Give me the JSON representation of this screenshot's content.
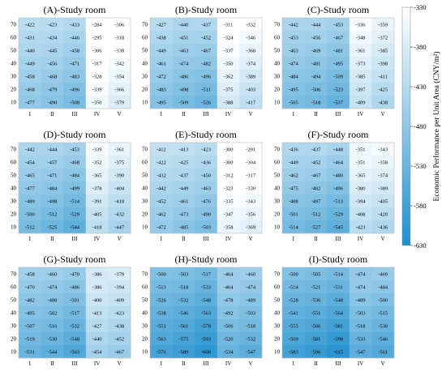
{
  "chart_data": {
    "type": "heatmap",
    "colorbar": {
      "label": "Economic Performance per Unit Area (CNY/m²)",
      "range": [
        -630,
        -330
      ],
      "ticks": [
        "-330",
        "-380",
        "-430",
        "-480",
        "-530",
        "-580",
        "-630"
      ],
      "color_high": "#ffffff",
      "color_low": "#1f8fce"
    },
    "x_categories": [
      "I",
      "II",
      "III",
      "IV",
      "V"
    ],
    "y_categories": [
      "70",
      "60",
      "50",
      "40",
      "30",
      "20",
      "10"
    ],
    "panels": [
      {
        "title": "(A)-Study room",
        "values": [
          [
            -422,
            -423,
            -433,
            -284,
            -306
          ],
          [
            -431,
            -434,
            -446,
            -295,
            -318
          ],
          [
            -440,
            -445,
            -458,
            -306,
            -330
          ],
          [
            -449,
            -456,
            -471,
            -317,
            -342
          ],
          [
            -458,
            -468,
            -483,
            -328,
            -354
          ],
          [
            -468,
            -479,
            -496,
            -339,
            -366
          ],
          [
            -477,
            -490,
            -508,
            -350,
            -379
          ]
        ]
      },
      {
        "title": "(B)-Study room",
        "values": [
          [
            -427,
            -440,
            -437,
            -311,
            -332
          ],
          [
            -438,
            -451,
            -452,
            -324,
            -346
          ],
          [
            -449,
            -463,
            -467,
            -337,
            -360
          ],
          [
            -461,
            -474,
            -482,
            -350,
            -374
          ],
          [
            -472,
            -486,
            -496,
            -362,
            -389
          ],
          [
            -483,
            -498,
            -511,
            -375,
            -403
          ],
          [
            -495,
            -509,
            -526,
            -388,
            -417
          ]
        ]
      },
      {
        "title": "(C)-Study room",
        "values": [
          [
            -442,
            -444,
            -453,
            -336,
            -359
          ],
          [
            -453,
            -456,
            -467,
            -348,
            -372
          ],
          [
            -463,
            -469,
            -481,
            -361,
            -385
          ],
          [
            -474,
            -481,
            -495,
            -373,
            -398
          ],
          [
            -484,
            -494,
            -509,
            -385,
            -411
          ],
          [
            -495,
            -506,
            -523,
            -397,
            -425
          ],
          [
            -505,
            -518,
            -537,
            -409,
            -438
          ]
        ]
      },
      {
        "title": "(D)-Study room",
        "values": [
          [
            -442,
            -444,
            -453,
            -339,
            -361
          ],
          [
            -454,
            -457,
            -468,
            -352,
            -375
          ],
          [
            -465,
            -471,
            -484,
            -365,
            -390
          ],
          [
            -477,
            -484,
            -499,
            -378,
            -404
          ],
          [
            -489,
            -498,
            -514,
            -391,
            -418
          ],
          [
            -500,
            -512,
            -529,
            -405,
            -432
          ],
          [
            -512,
            -525,
            -544,
            -418,
            -447
          ]
        ]
      },
      {
        "title": "(E)-Study room",
        "values": [
          [
            -412,
            -413,
            -423,
            -300,
            -291
          ],
          [
            -422,
            -425,
            -436,
            -300,
            -304
          ],
          [
            -432,
            -437,
            -450,
            -312,
            -317
          ],
          [
            -442,
            -449,
            -463,
            -323,
            -330
          ],
          [
            -452,
            -461,
            -476,
            -335,
            -343
          ],
          [
            -462,
            -473,
            -490,
            -347,
            -356
          ],
          [
            -472,
            -485,
            -503,
            -358,
            -369
          ]
        ]
      },
      {
        "title": "(F)-Study room",
        "values": [
          [
            -436,
            -437,
            -448,
            -351,
            -343
          ],
          [
            -449,
            -452,
            -464,
            -351,
            -358
          ],
          [
            -462,
            -467,
            -480,
            -365,
            -374
          ],
          [
            -475,
            -482,
            -496,
            -380,
            -389
          ],
          [
            -488,
            -497,
            -513,
            -394,
            -405
          ],
          [
            -501,
            -512,
            -529,
            -408,
            -420
          ],
          [
            -514,
            -527,
            -545,
            -423,
            -436
          ]
        ]
      },
      {
        "title": "(G)-Study room",
        "values": [
          [
            -458,
            -460,
            -470,
            -386,
            -379
          ],
          [
            -470,
            -474,
            -486,
            -386,
            -394
          ],
          [
            -482,
            -488,
            -501,
            -400,
            -409
          ],
          [
            -495,
            -502,
            -517,
            -413,
            -423
          ],
          [
            -507,
            -516,
            -532,
            -427,
            -438
          ],
          [
            -519,
            -530,
            -548,
            -440,
            -452
          ],
          [
            -531,
            -544,
            -563,
            -454,
            -467
          ]
        ]
      },
      {
        "title": "(H)-Study room",
        "values": [
          [
            -500,
            -503,
            -517,
            -464,
            -460
          ],
          [
            -513,
            -518,
            -533,
            -464,
            -474
          ],
          [
            -526,
            -532,
            -548,
            -478,
            -489
          ],
          [
            -538,
            -546,
            -563,
            -492,
            -503
          ],
          [
            -551,
            -561,
            -578,
            -506,
            -518
          ],
          [
            -563,
            -575,
            -593,
            -520,
            -532
          ],
          [
            -576,
            -589,
            -608,
            -534,
            -547
          ]
        ]
      },
      {
        "title": "(I)-Study room",
        "values": [
          [
            -500,
            -505,
            -514,
            -474,
            -469
          ],
          [
            -514,
            -521,
            -531,
            -474,
            -484
          ],
          [
            -528,
            -536,
            -548,
            -489,
            -500
          ],
          [
            -541,
            -551,
            -564,
            -503,
            -515
          ],
          [
            -555,
            -566,
            -581,
            -518,
            -530
          ],
          [
            -569,
            -581,
            -598,
            -533,
            -546
          ],
          [
            -583,
            -596,
            -615,
            -547,
            -561
          ]
        ]
      }
    ]
  }
}
